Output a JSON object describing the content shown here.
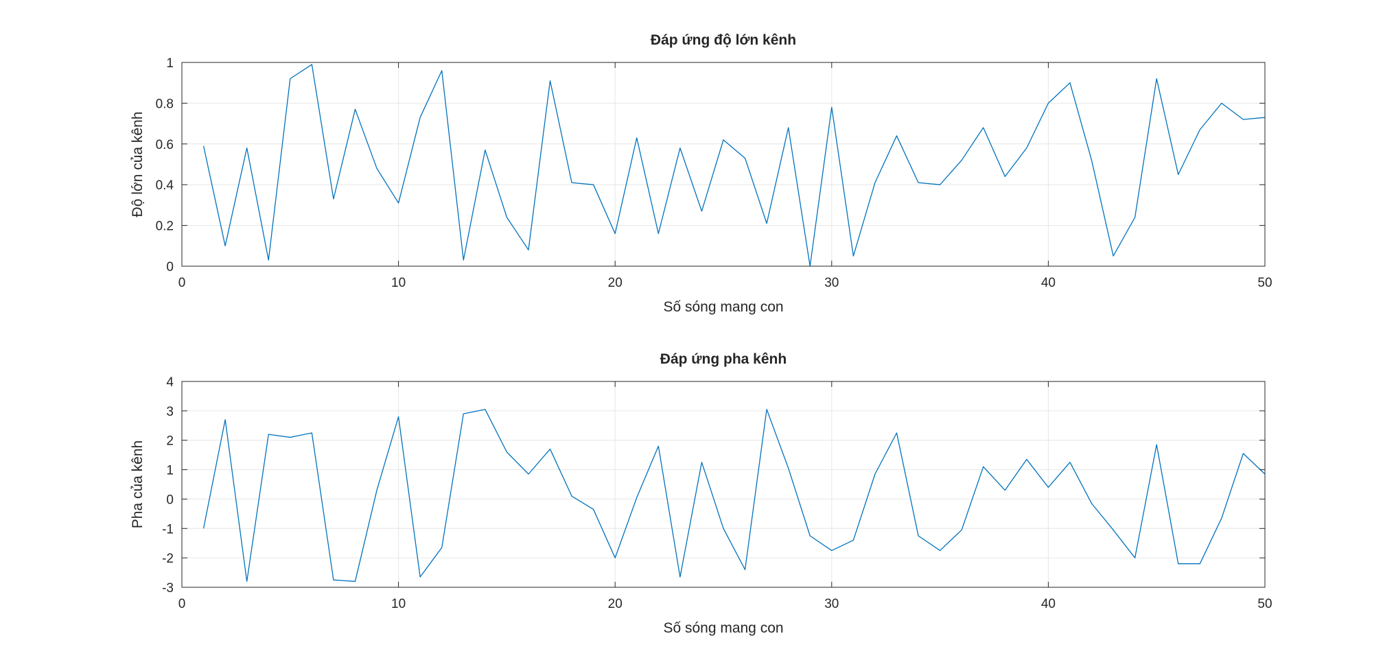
{
  "chart_data": [
    {
      "type": "line",
      "title": "Đáp ứng độ lớn kênh",
      "xlabel": "Số sóng mang con",
      "ylabel": "Độ lớn của kênh",
      "xlim": [
        0,
        50
      ],
      "ylim": [
        0,
        1
      ],
      "xticks": [
        0,
        10,
        20,
        30,
        40,
        50
      ],
      "yticks": [
        0,
        0.2,
        0.4,
        0.6,
        0.8,
        1
      ],
      "xtick_labels": [
        "0",
        "10",
        "20",
        "30",
        "40",
        "50"
      ],
      "ytick_labels": [
        "0",
        "0.2",
        "0.4",
        "0.6",
        "0.8",
        "1"
      ],
      "grid": true,
      "color": "#0072bd",
      "x": [
        1,
        2,
        3,
        4,
        5,
        6,
        7,
        8,
        9,
        10,
        11,
        12,
        13,
        14,
        15,
        16,
        17,
        18,
        19,
        20,
        21,
        22,
        23,
        24,
        25,
        26,
        27,
        28,
        29,
        30,
        31,
        32,
        33,
        34,
        35,
        36,
        37,
        38,
        39,
        40,
        41,
        42,
        43,
        44,
        45,
        46,
        47,
        48,
        49,
        50
      ],
      "y": [
        0.59,
        0.1,
        0.58,
        0.03,
        0.92,
        0.99,
        0.33,
        0.77,
        0.48,
        0.31,
        0.73,
        0.96,
        0.03,
        0.57,
        0.24,
        0.08,
        0.91,
        0.41,
        0.4,
        0.16,
        0.63,
        0.16,
        0.58,
        0.27,
        0.62,
        0.53,
        0.21,
        0.68,
        0.0,
        0.78,
        0.05,
        0.41,
        0.64,
        0.41,
        0.4,
        0.52,
        0.68,
        0.44,
        0.58,
        0.8,
        0.9,
        0.52,
        0.05,
        0.24,
        0.92,
        0.45,
        0.67,
        0.8,
        0.72,
        0.73
      ]
    },
    {
      "type": "line",
      "title": "Đáp ứng pha kênh",
      "xlabel": "Số sóng mang con",
      "ylabel": "Pha của kênh",
      "xlim": [
        0,
        50
      ],
      "ylim": [
        -3,
        4
      ],
      "xticks": [
        0,
        10,
        20,
        30,
        40,
        50
      ],
      "yticks": [
        -3,
        -2,
        -1,
        0,
        1,
        2,
        3,
        4
      ],
      "xtick_labels": [
        "0",
        "10",
        "20",
        "30",
        "40",
        "50"
      ],
      "ytick_labels": [
        "-3",
        "-2",
        "-1",
        "0",
        "1",
        "2",
        "3",
        "4"
      ],
      "grid": true,
      "color": "#0072bd",
      "x": [
        1,
        2,
        3,
        4,
        5,
        6,
        7,
        8,
        9,
        10,
        11,
        12,
        13,
        14,
        15,
        16,
        17,
        18,
        19,
        20,
        21,
        22,
        23,
        24,
        25,
        26,
        27,
        28,
        29,
        30,
        31,
        32,
        33,
        34,
        35,
        36,
        37,
        38,
        39,
        40,
        41,
        42,
        43,
        44,
        45,
        46,
        47,
        48,
        49,
        50
      ],
      "y": [
        -1.0,
        2.7,
        -2.8,
        2.2,
        2.1,
        2.25,
        -2.75,
        -2.8,
        0.3,
        2.8,
        -2.65,
        -1.65,
        2.9,
        3.05,
        1.6,
        0.85,
        1.7,
        0.1,
        -0.35,
        -2.0,
        0.05,
        1.8,
        -2.65,
        1.25,
        -1.0,
        -2.4,
        3.05,
        1.05,
        -1.25,
        -1.75,
        -1.4,
        0.85,
        2.25,
        -1.25,
        -1.75,
        -1.05,
        1.1,
        0.3,
        1.35,
        0.4,
        1.25,
        -0.15,
        -1.05,
        -2.0,
        1.85,
        -2.2,
        -2.2,
        -0.65,
        1.55,
        0.85
      ]
    }
  ]
}
